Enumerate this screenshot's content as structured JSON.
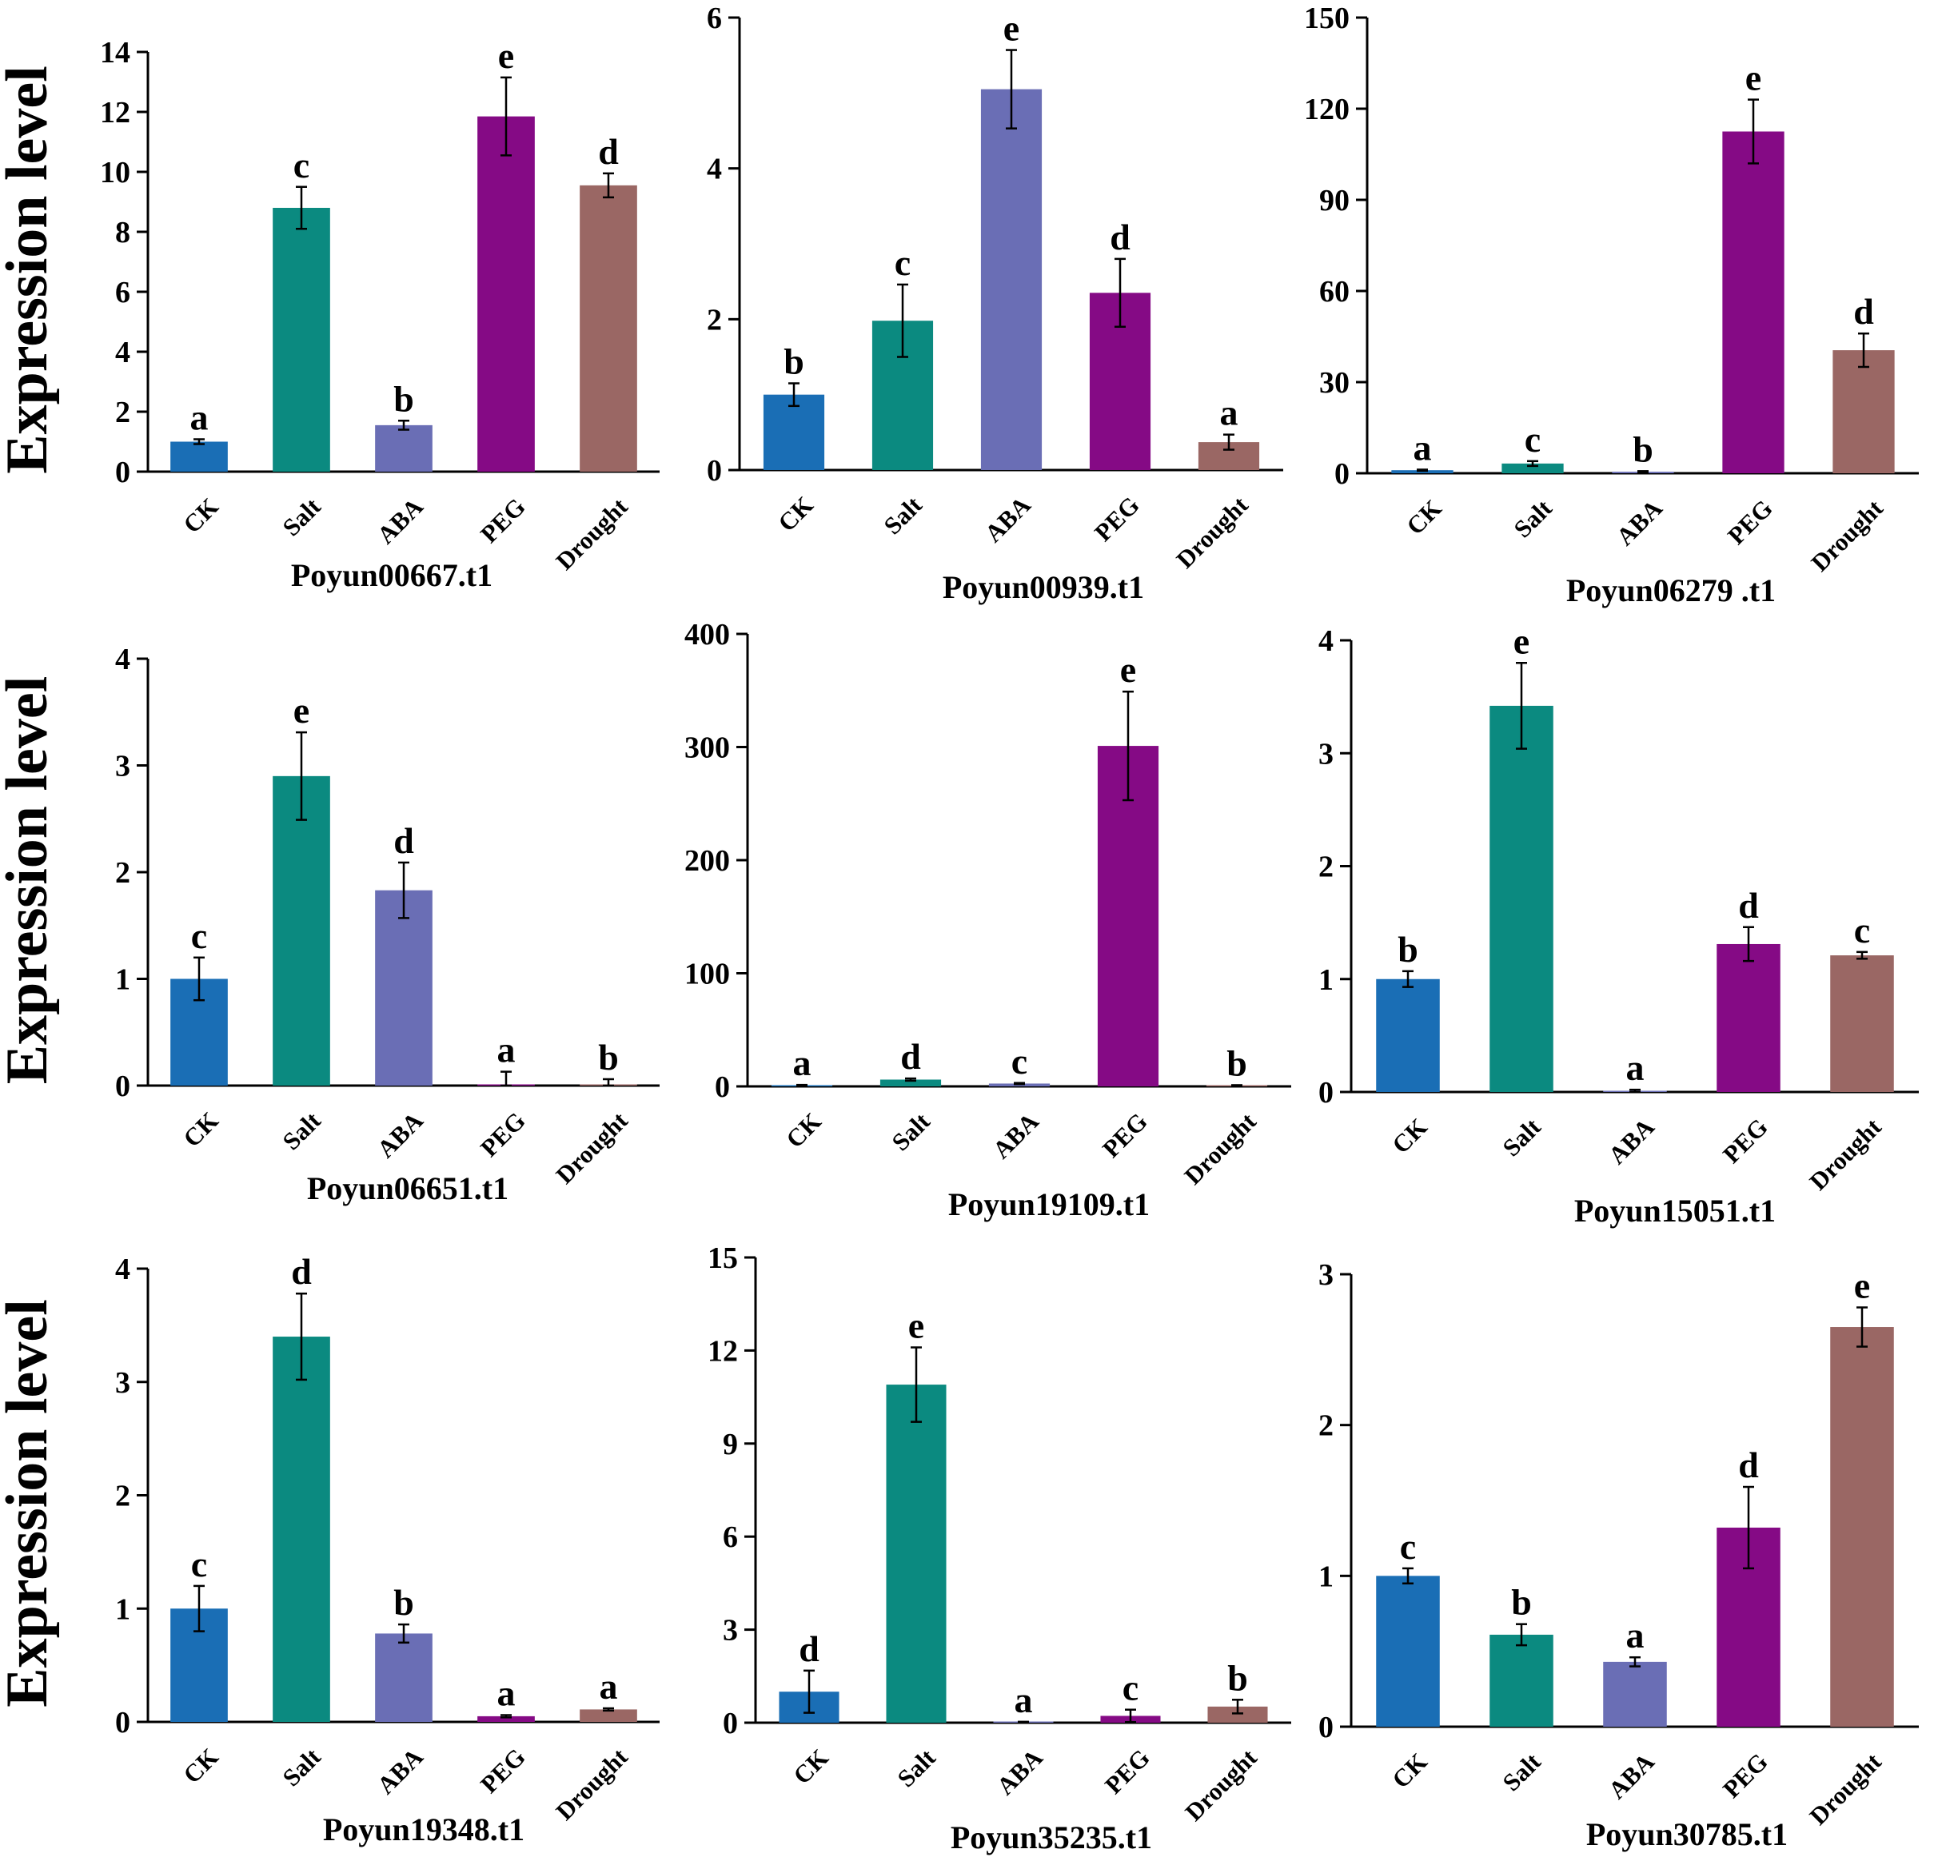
{
  "y_axis_label": "Expression level",
  "colors": {
    "CK": "#1a6eb5",
    "Salt": "#0b8a80",
    "ABA": "#6a6eb5",
    "PEG": "#850a85",
    "Drought": "#9a6764",
    "axis": "#000000"
  },
  "chart_data": [
    {
      "type": "bar",
      "title": "Poyun00667.t1",
      "ylabel": "Expression level",
      "categories": [
        "CK",
        "Salt",
        "ABA",
        "PEG",
        "Drought"
      ],
      "values": [
        1.0,
        8.8,
        1.55,
        11.85,
        9.55
      ],
      "errors": [
        0.08,
        0.7,
        0.15,
        1.3,
        0.4
      ],
      "letters": [
        "a",
        "c",
        "b",
        "e",
        "d"
      ],
      "ylim": [
        0,
        14
      ],
      "yticks": [
        "0",
        "2",
        "4",
        "6",
        "8",
        "10",
        "12",
        "14"
      ]
    },
    {
      "type": "bar",
      "title": "Poyun00939.t1",
      "ylabel": "",
      "categories": [
        "CK",
        "Salt",
        "ABA",
        "PEG",
        "Drought"
      ],
      "values": [
        1.0,
        1.98,
        5.05,
        2.35,
        0.37
      ],
      "errors": [
        0.15,
        0.48,
        0.52,
        0.45,
        0.1
      ],
      "letters": [
        "b",
        "c",
        "e",
        "d",
        "a"
      ],
      "ylim": [
        0,
        6
      ],
      "yticks": [
        "0",
        "2",
        "4",
        "6"
      ]
    },
    {
      "type": "bar",
      "title": "Poyun06279 .t1",
      "ylabel": "",
      "categories": [
        "CK",
        "Salt",
        "ABA",
        "PEG",
        "Drought"
      ],
      "values": [
        1.0,
        3.2,
        0.5,
        112.5,
        40.5
      ],
      "errors": [
        0.2,
        0.8,
        0.2,
        10.5,
        5.5
      ],
      "letters": [
        "a",
        "c",
        "b",
        "e",
        "d"
      ],
      "ylim": [
        0,
        150
      ],
      "yticks": [
        "0",
        "30",
        "60",
        "90",
        "120",
        "150"
      ]
    },
    {
      "type": "bar",
      "title": "Poyun06651.t1",
      "ylabel": "Expression level",
      "categories": [
        "CK",
        "Salt",
        "ABA",
        "PEG",
        "Drought"
      ],
      "values": [
        1.0,
        2.9,
        1.83,
        0.01,
        0.01
      ],
      "errors": [
        0.2,
        0.41,
        0.26,
        0.12,
        0.05
      ],
      "letters": [
        "c",
        "e",
        "d",
        "a",
        "b"
      ],
      "ylim": [
        0,
        4
      ],
      "yticks": [
        "0",
        "1",
        "2",
        "3",
        "4"
      ]
    },
    {
      "type": "bar",
      "title": "Poyun19109.t1",
      "ylabel": "",
      "categories": [
        "CK",
        "Salt",
        "ABA",
        "PEG",
        "Drought"
      ],
      "values": [
        1.0,
        6.0,
        2.5,
        301.0,
        0.8
      ],
      "errors": [
        0.3,
        1.0,
        0.5,
        48.0,
        0.3
      ],
      "letters": [
        "a",
        "d",
        "c",
        "e",
        "b"
      ],
      "ylim": [
        0,
        400
      ],
      "yticks": [
        "0",
        "100",
        "200",
        "300",
        "400"
      ]
    },
    {
      "type": "bar",
      "title": "Poyun15051.t1",
      "ylabel": "",
      "categories": [
        "CK",
        "Salt",
        "ABA",
        "PEG",
        "Drought"
      ],
      "values": [
        1.0,
        3.42,
        0.01,
        1.31,
        1.21
      ],
      "errors": [
        0.07,
        0.38,
        0.01,
        0.15,
        0.03
      ],
      "letters": [
        "b",
        "e",
        "a",
        "d",
        "c"
      ],
      "ylim": [
        0,
        4
      ],
      "yticks": [
        "0",
        "1",
        "2",
        "3",
        "4"
      ]
    },
    {
      "type": "bar",
      "title": "Poyun19348.t1",
      "ylabel": "Expression level",
      "categories": [
        "CK",
        "Salt",
        "ABA",
        "PEG",
        "Drought"
      ],
      "values": [
        1.0,
        3.4,
        0.78,
        0.05,
        0.11
      ],
      "errors": [
        0.2,
        0.38,
        0.08,
        0.01,
        0.01
      ],
      "letters": [
        "c",
        "d",
        "b",
        "a",
        "a"
      ],
      "ylim": [
        0,
        4
      ],
      "yticks": [
        "0",
        "1",
        "2",
        "3",
        "4"
      ]
    },
    {
      "type": "bar",
      "title": "Poyun35235.t1",
      "ylabel": "",
      "categories": [
        "CK",
        "Salt",
        "ABA",
        "PEG",
        "Drought"
      ],
      "values": [
        1.0,
        10.9,
        0.02,
        0.22,
        0.52
      ],
      "errors": [
        0.68,
        1.2,
        0.01,
        0.2,
        0.22
      ],
      "letters": [
        "d",
        "e",
        "a",
        "c",
        "b"
      ],
      "ylim": [
        0,
        15
      ],
      "yticks": [
        "0",
        "3",
        "6",
        "9",
        "12",
        "15"
      ]
    },
    {
      "type": "bar",
      "title": "Poyun30785.t1",
      "ylabel": "",
      "categories": [
        "CK",
        "Salt",
        "ABA",
        "PEG",
        "Drought"
      ],
      "values": [
        1.0,
        0.61,
        0.43,
        1.32,
        2.65
      ],
      "errors": [
        0.05,
        0.07,
        0.03,
        0.27,
        0.13
      ],
      "letters": [
        "c",
        "b",
        "a",
        "d",
        "e"
      ],
      "ylim": [
        0,
        3
      ],
      "yticks": [
        "0",
        "1",
        "2",
        "3"
      ]
    }
  ]
}
